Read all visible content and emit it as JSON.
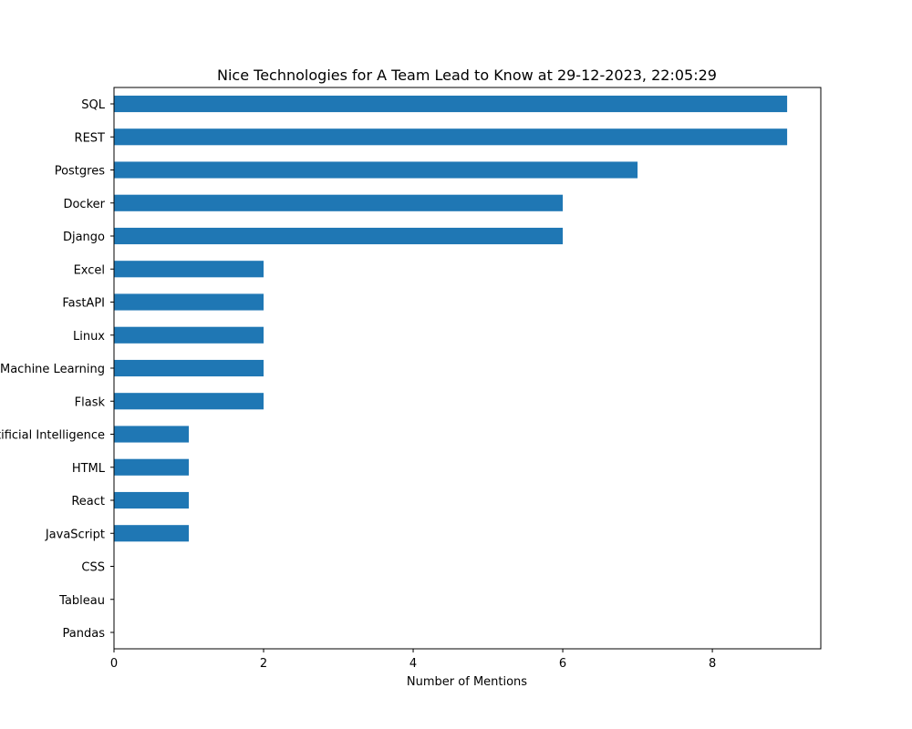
{
  "chart_data": {
    "type": "bar",
    "orientation": "horizontal",
    "title": "Nice Technologies for A Team Lead to Know at 29-12-2023, 22:05:29",
    "xlabel": "Number of Mentions",
    "ylabel": "",
    "categories": [
      "SQL",
      "REST",
      "Postgres",
      "Docker",
      "Django",
      "Excel",
      "FastAPI",
      "Linux",
      "Machine Learning",
      "Flask",
      "Artificial Intelligence",
      "HTML",
      "React",
      "JavaScript",
      "CSS",
      "Tableau",
      "Pandas"
    ],
    "values": [
      9,
      9,
      7,
      6,
      6,
      2,
      2,
      2,
      2,
      2,
      1,
      1,
      1,
      1,
      0,
      0,
      0
    ],
    "xlim": [
      0,
      9.45
    ],
    "xticks": [
      0,
      2,
      4,
      6,
      8
    ],
    "grid": false,
    "bar_color": "#1f77b4"
  }
}
